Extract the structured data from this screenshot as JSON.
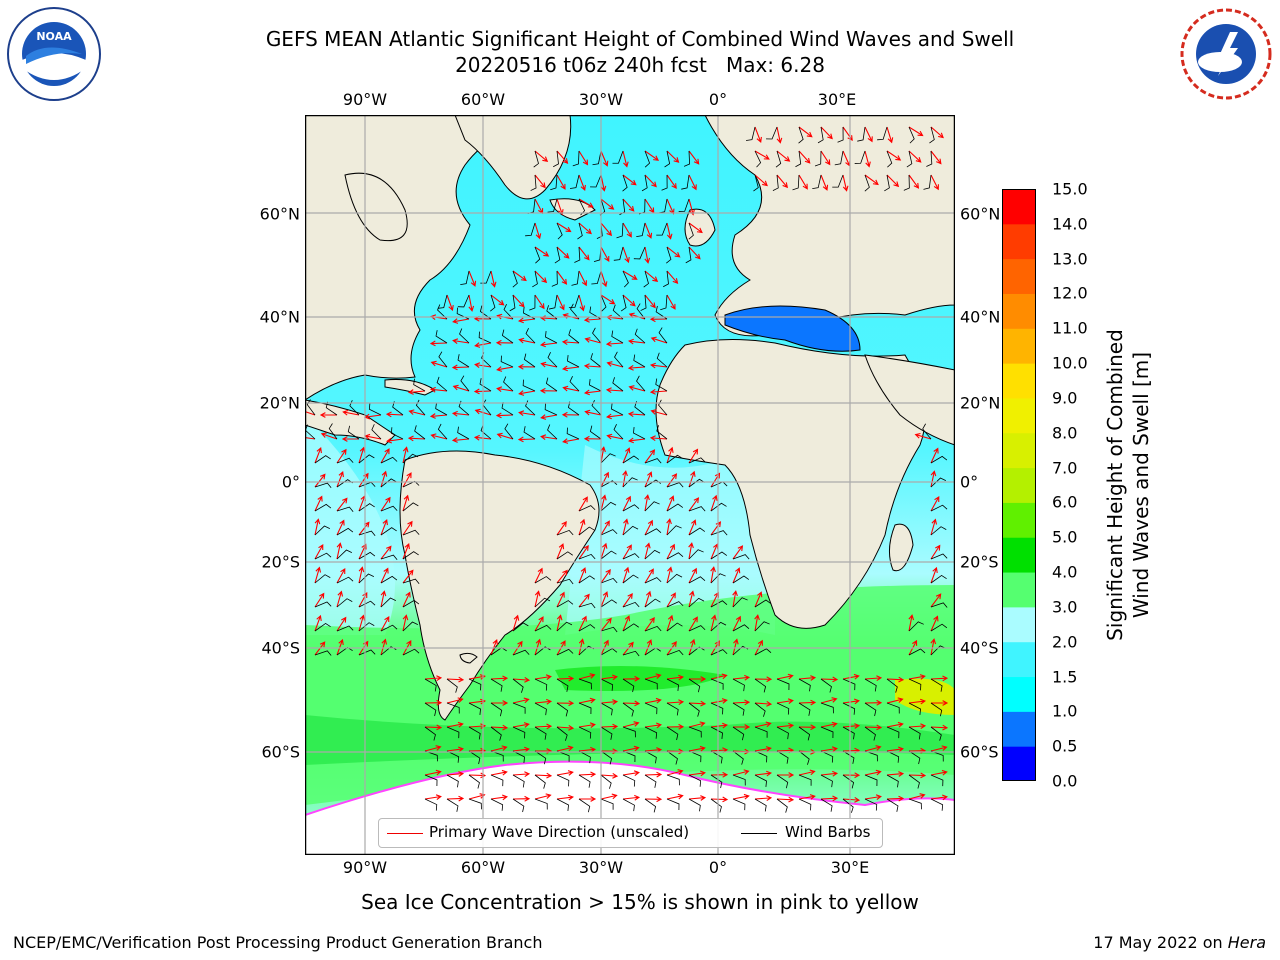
{
  "header": {
    "title_line1": "GEFS MEAN Atlantic Significant Height of Combined Wind Waves and Swell",
    "title_line2": "20220516 t06z 240h fcst   Max: 6.28"
  },
  "logos": {
    "left": "noaa-logo",
    "right": "nws-logo"
  },
  "map": {
    "lon_ticks": [
      "90°W",
      "60°W",
      "30°W",
      "0°",
      "30°E"
    ],
    "lat_ticks": [
      "60°N",
      "40°N",
      "20°N",
      "0°",
      "20°S",
      "40°S",
      "60°S"
    ],
    "land_color": "#efecdc",
    "ocean_field": "wave height shading with wind barbs and primary wave direction arrows"
  },
  "legend": {
    "primary_wave_direction": "Primary Wave Direction (unscaled)",
    "wind_barbs": "Wind Barbs",
    "wave_arrow_color": "#ff0000",
    "barb_color": "#000000"
  },
  "colorbar": {
    "label_line1": "Significant Height of Combined",
    "label_line2": "Wind Waves and Swell [m]",
    "ticks": [
      "0.0",
      "0.5",
      "1.0",
      "1.5",
      "2.0",
      "3.0",
      "4.0",
      "5.0",
      "6.0",
      "7.0",
      "8.0",
      "9.0",
      "10.0",
      "11.0",
      "12.0",
      "13.0",
      "14.0",
      "15.0"
    ],
    "colors": [
      "#0000ff",
      "#0b76ff",
      "#00ffff",
      "#40f4ff",
      "#aafcff",
      "#55ff70",
      "#00e000",
      "#60f000",
      "#b4f000",
      "#d8f000",
      "#f0f000",
      "#ffe000",
      "#ffb400",
      "#ff8c00",
      "#ff6400",
      "#ff3c00",
      "#ff0000"
    ]
  },
  "caption": "Sea Ice Concentration > 15% is shown in pink to yellow",
  "footer": {
    "left": "NCEP/EMC/Verification Post Processing Product Generation Branch",
    "right_date": "17 May 2022 on",
    "right_host": "Hera"
  }
}
